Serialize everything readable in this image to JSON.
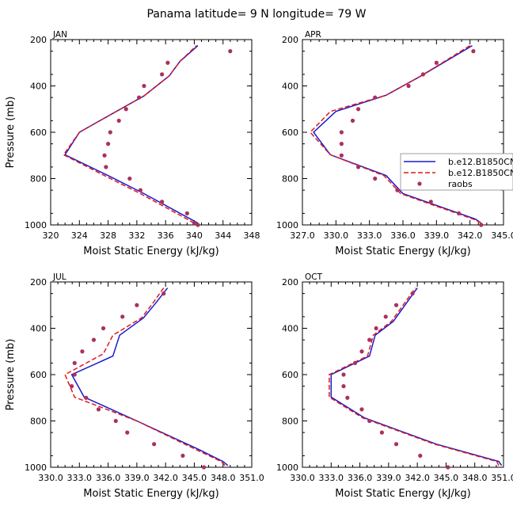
{
  "figure_title": "Panama  latitude= 9 N longitude= 79 W",
  "colors": {
    "model1": "#1a1acc",
    "model2": "#e01a1a",
    "obs": "#a8325e",
    "axis": "#000000"
  },
  "chart_data": [
    {
      "type": "line",
      "panel": "JAN",
      "xlabel": "Moist Static Energy (kJ/kg)",
      "ylabel": "Pressure (mb)",
      "xlim": [
        320,
        348
      ],
      "ylim": [
        1000,
        200
      ],
      "xticks": [
        320,
        324,
        328,
        332,
        336,
        340,
        344,
        348
      ],
      "xtick_labels": [
        "320",
        "324",
        "328",
        "332",
        "336",
        "340",
        "344",
        "348"
      ],
      "yticks": [
        200,
        400,
        600,
        800,
        1000
      ],
      "ytick_labels": [
        "200",
        "400",
        "600",
        "800",
        "1000"
      ],
      "series": [
        {
          "name": "b.e12.B1850CN",
          "style": "solid",
          "color": "model1",
          "points": [
            [
              340.5,
              992
            ],
            [
              339.5,
              975
            ],
            [
              333,
              865
            ],
            [
              328,
              787
            ],
            [
              322,
              697
            ],
            [
              324,
              600
            ],
            [
              326.5,
              556
            ],
            [
              333,
              443
            ],
            [
              336.5,
              357
            ],
            [
              338,
              294
            ],
            [
              340.5,
              226
            ]
          ]
        },
        {
          "name": "b.e12.B1850CN",
          "style": "dashed",
          "color": "model2",
          "points": [
            [
              340,
              992
            ],
            [
              339,
              975
            ],
            [
              332.5,
              865
            ],
            [
              327.5,
              787
            ],
            [
              321.8,
              697
            ],
            [
              324,
              600
            ],
            [
              326.5,
              556
            ],
            [
              333,
              443
            ],
            [
              336.5,
              357
            ],
            [
              338,
              294
            ],
            [
              340.3,
              226
            ]
          ]
        },
        {
          "name": "raobs",
          "style": "dots",
          "color": "obs",
          "points": [
            [
              340.5,
              1000
            ],
            [
              340,
              992
            ],
            [
              339,
              950
            ],
            [
              335.5,
              900
            ],
            [
              332.5,
              850
            ],
            [
              331,
              800
            ],
            [
              327.7,
              750
            ],
            [
              327.5,
              700
            ],
            [
              328,
              650
            ],
            [
              328.3,
              600
            ],
            [
              329.5,
              550
            ],
            [
              330.5,
              500
            ],
            [
              332.3,
              450
            ],
            [
              333,
              400
            ],
            [
              335.5,
              350
            ],
            [
              336.3,
              300
            ],
            [
              345,
              250
            ]
          ]
        }
      ]
    },
    {
      "type": "line",
      "panel": "APR",
      "xlabel": "Moist Static Energy (kJ/kg)",
      "ylabel": "",
      "xlim": [
        327,
        345
      ],
      "ylim": [
        1000,
        200
      ],
      "xticks": [
        327,
        330,
        333,
        336,
        339,
        342,
        345
      ],
      "xtick_labels": [
        "327.0",
        "330.0",
        "333.0",
        "336.0",
        "339.0",
        "342.0",
        "345.0"
      ],
      "yticks": [
        200,
        400,
        600,
        800,
        1000
      ],
      "ytick_labels": [
        "200",
        "400",
        "600",
        "800",
        "1000"
      ],
      "legend": {
        "position": "right",
        "entries": [
          "b.e12.B1850CN",
          "b.e12.B1850CN",
          "raobs"
        ]
      },
      "series": [
        {
          "name": "b.e12.B1850CN",
          "style": "solid",
          "color": "model1",
          "points": [
            [
              343,
              992
            ],
            [
              342.5,
              975
            ],
            [
              336,
              865
            ],
            [
              334.5,
              787
            ],
            [
              329.5,
              697
            ],
            [
              328,
              600
            ],
            [
              330,
              510
            ],
            [
              334.5,
              440
            ],
            [
              337.5,
              360
            ],
            [
              342.2,
              226
            ]
          ]
        },
        {
          "name": "b.e12.B1850CN",
          "style": "dashed",
          "color": "model2",
          "points": [
            [
              343,
              992
            ],
            [
              342.3,
              975
            ],
            [
              335.8,
              865
            ],
            [
              334.3,
              787
            ],
            [
              329.5,
              697
            ],
            [
              327.7,
              600
            ],
            [
              329.5,
              510
            ],
            [
              334.5,
              440
            ],
            [
              337.5,
              360
            ],
            [
              342,
              226
            ]
          ]
        },
        {
          "name": "raobs",
          "style": "dots",
          "color": "obs",
          "points": [
            [
              343,
              1000
            ],
            [
              341,
              950
            ],
            [
              338.5,
              900
            ],
            [
              335.5,
              850
            ],
            [
              333.5,
              800
            ],
            [
              332,
              750
            ],
            [
              330.5,
              700
            ],
            [
              330.5,
              650
            ],
            [
              330.5,
              600
            ],
            [
              331.5,
              550
            ],
            [
              332,
              500
            ],
            [
              333.5,
              450
            ],
            [
              336.5,
              400
            ],
            [
              337.8,
              350
            ],
            [
              339,
              300
            ],
            [
              342.3,
              250
            ]
          ]
        }
      ]
    },
    {
      "type": "line",
      "panel": "JUL",
      "xlabel": "Moist Static Energy (kJ/kg)",
      "ylabel": "Pressure (mb)",
      "xlim": [
        330,
        351
      ],
      "ylim": [
        1000,
        200
      ],
      "xticks": [
        330,
        333,
        336,
        339,
        342,
        345,
        348,
        351
      ],
      "xtick_labels": [
        "330.0",
        "333.0",
        "336.0",
        "339.0",
        "342.0",
        "345.0",
        "348.0",
        "351.0"
      ],
      "yticks": [
        200,
        400,
        600,
        800,
        1000
      ],
      "ytick_labels": [
        "200",
        "400",
        "600",
        "800",
        "1000"
      ],
      "series": [
        {
          "name": "b.e12.B1850CN",
          "style": "solid",
          "color": "model1",
          "points": [
            [
              348.5,
              992
            ],
            [
              348,
              975
            ],
            [
              345.3,
              920
            ],
            [
              339,
              800
            ],
            [
              333.5,
              697
            ],
            [
              332.2,
              600
            ],
            [
              336.5,
              520
            ],
            [
              337.2,
              430
            ],
            [
              339.7,
              355
            ],
            [
              341,
              290
            ],
            [
              342.2,
              226
            ]
          ]
        },
        {
          "name": "b.e12.B1850CN",
          "style": "dashed",
          "color": "model2",
          "points": [
            [
              348.2,
              992
            ],
            [
              347.8,
              975
            ],
            [
              345,
              920
            ],
            [
              339,
              800
            ],
            [
              332.5,
              697
            ],
            [
              331.5,
              600
            ],
            [
              335.5,
              510
            ],
            [
              336.5,
              430
            ],
            [
              339.5,
              355
            ],
            [
              340.7,
              290
            ],
            [
              341.8,
              226
            ]
          ]
        },
        {
          "name": "raobs",
          "style": "dots",
          "color": "obs",
          "points": [
            [
              346,
              1000
            ],
            [
              343.8,
              950
            ],
            [
              340.8,
              900
            ],
            [
              338,
              850
            ],
            [
              336.8,
              800
            ],
            [
              335,
              750
            ],
            [
              333.7,
              700
            ],
            [
              332.2,
              650
            ],
            [
              332.5,
              600
            ],
            [
              332.5,
              550
            ],
            [
              333.3,
              500
            ],
            [
              334.5,
              450
            ],
            [
              335.5,
              400
            ],
            [
              337.5,
              350
            ],
            [
              339,
              300
            ],
            [
              341.8,
              250
            ]
          ]
        }
      ]
    },
    {
      "type": "line",
      "panel": "OCT",
      "xlabel": "Moist Static Energy (kJ/kg)",
      "ylabel": "",
      "xlim": [
        330,
        351
      ],
      "ylim": [
        1000,
        200
      ],
      "xticks": [
        330,
        333,
        336,
        339,
        342,
        345,
        348,
        351
      ],
      "xtick_labels": [
        "330.0",
        "333.0",
        "336.0",
        "339.0",
        "342.0",
        "345.0",
        "348.0",
        "351.0"
      ],
      "yticks": [
        200,
        400,
        600,
        800,
        1000
      ],
      "ytick_labels": [
        "200",
        "400",
        "600",
        "800",
        "1000"
      ],
      "series": [
        {
          "name": "b.e12.B1850CN",
          "style": "solid",
          "color": "model1",
          "points": [
            [
              350.8,
              992
            ],
            [
              350.5,
              975
            ],
            [
              344,
              900
            ],
            [
              336.5,
              787
            ],
            [
              333,
              697
            ],
            [
              333,
              600
            ],
            [
              337,
              520
            ],
            [
              337.6,
              430
            ],
            [
              339.5,
              370
            ],
            [
              342,
              226
            ]
          ]
        },
        {
          "name": "b.e12.B1850CN",
          "style": "dashed",
          "color": "model2",
          "points": [
            [
              350.5,
              992
            ],
            [
              350.3,
              975
            ],
            [
              343.8,
              900
            ],
            [
              336.3,
              787
            ],
            [
              332.8,
              697
            ],
            [
              332.8,
              600
            ],
            [
              336.8,
              520
            ],
            [
              337.4,
              430
            ],
            [
              339.3,
              370
            ],
            [
              341.8,
              226
            ]
          ]
        },
        {
          "name": "raobs",
          "style": "dots",
          "color": "obs",
          "points": [
            [
              345.2,
              1000
            ],
            [
              342.3,
              950
            ],
            [
              339.8,
              900
            ],
            [
              338.3,
              850
            ],
            [
              337,
              800
            ],
            [
              336.2,
              750
            ],
            [
              334.7,
              700
            ],
            [
              334.3,
              650
            ],
            [
              334.3,
              600
            ],
            [
              335.5,
              550
            ],
            [
              336.2,
              500
            ],
            [
              337,
              450
            ],
            [
              337.7,
              400
            ],
            [
              338.7,
              350
            ],
            [
              339.8,
              300
            ],
            [
              341.5,
              250
            ]
          ]
        }
      ]
    }
  ]
}
